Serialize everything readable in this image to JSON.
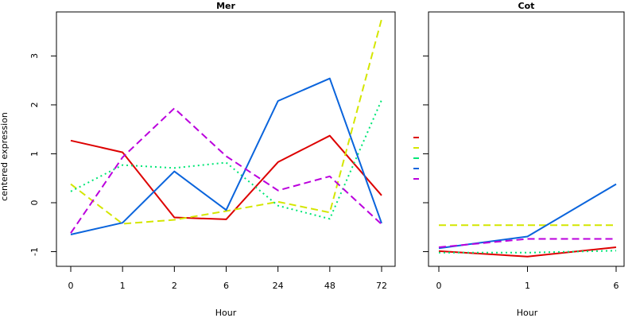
{
  "chart_data": [
    {
      "type": "line",
      "title": "Mer",
      "xlabel": "Hour",
      "ylabel": "centered expression",
      "categories": [
        "0",
        "1",
        "2",
        "6",
        "24",
        "48",
        "72"
      ],
      "ylim": [
        -1.3,
        3.9
      ],
      "yticks": [
        -1,
        0,
        1,
        2,
        3
      ],
      "grid": false,
      "series": [
        {
          "color": "#dd0000",
          "dash": "solid",
          "values": [
            1.27,
            1.03,
            -0.3,
            -0.34,
            0.83,
            1.37,
            0.15
          ]
        },
        {
          "color": "#d4e600",
          "dash": "dashed",
          "values": [
            0.38,
            -0.43,
            -0.35,
            -0.17,
            0.02,
            -0.2,
            3.75
          ]
        },
        {
          "color": "#00e676",
          "dash": "dotted",
          "values": [
            0.23,
            0.77,
            0.71,
            0.82,
            -0.06,
            -0.33,
            2.1
          ]
        },
        {
          "color": "#0a64dc",
          "dash": "solid",
          "values": [
            -0.65,
            -0.41,
            0.64,
            -0.15,
            2.08,
            2.54,
            -0.42
          ]
        },
        {
          "color": "#bb00dd",
          "dash": "dashed",
          "values": [
            -0.62,
            0.93,
            1.93,
            0.95,
            0.25,
            0.54,
            -0.44
          ]
        }
      ]
    },
    {
      "type": "line",
      "title": "Cot",
      "xlabel": "Hour",
      "ylabel": "",
      "categories": [
        "0",
        "1",
        "6"
      ],
      "ylim": [
        -1.3,
        3.9
      ],
      "yticks": [
        -1,
        0,
        1,
        2,
        3
      ],
      "grid": false,
      "series": [
        {
          "color": "#dd0000",
          "dash": "solid",
          "values": [
            -0.99,
            -1.1,
            -0.91
          ]
        },
        {
          "color": "#d4e600",
          "dash": "dashed",
          "values": [
            -0.46,
            -0.46,
            -0.46
          ]
        },
        {
          "color": "#00e676",
          "dash": "dotted",
          "values": [
            -1.02,
            -1.02,
            -0.98
          ]
        },
        {
          "color": "#0a64dc",
          "dash": "solid",
          "values": [
            -0.93,
            -0.69,
            0.38
          ]
        },
        {
          "color": "#bb00dd",
          "dash": "dashed",
          "values": [
            -0.91,
            -0.74,
            -0.74
          ]
        }
      ]
    }
  ],
  "legend": {
    "placement": "between panels",
    "colors": [
      "#dd0000",
      "#d4e600",
      "#00e676",
      "#0a64dc",
      "#bb00dd"
    ]
  }
}
